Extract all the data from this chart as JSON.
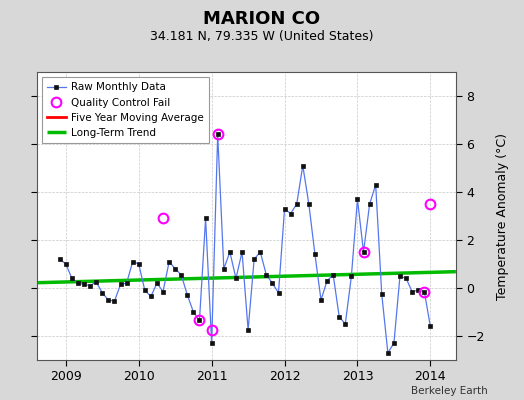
{
  "title": "MARION CO",
  "subtitle": "34.181 N, 79.335 W (United States)",
  "ylabel": "Temperature Anomaly (°C)",
  "credit": "Berkeley Earth",
  "background_color": "#d8d8d8",
  "plot_bg_color": "#ffffff",
  "ylim": [
    -3.0,
    9.0
  ],
  "yticks": [
    -2,
    0,
    2,
    4,
    6,
    8
  ],
  "xlim": [
    2008.6,
    2014.35
  ],
  "xticks": [
    2009,
    2010,
    2011,
    2012,
    2013,
    2014
  ],
  "raw_x": [
    2008.917,
    2009.0,
    2009.083,
    2009.167,
    2009.25,
    2009.333,
    2009.417,
    2009.5,
    2009.583,
    2009.667,
    2009.75,
    2009.833,
    2009.917,
    2010.0,
    2010.083,
    2010.167,
    2010.25,
    2010.333,
    2010.417,
    2010.5,
    2010.583,
    2010.667,
    2010.75,
    2010.833,
    2010.917,
    2011.0,
    2011.083,
    2011.167,
    2011.25,
    2011.333,
    2011.417,
    2011.5,
    2011.583,
    2011.667,
    2011.75,
    2011.833,
    2011.917,
    2012.0,
    2012.083,
    2012.167,
    2012.25,
    2012.333,
    2012.417,
    2012.5,
    2012.583,
    2012.667,
    2012.75,
    2012.833,
    2012.917,
    2013.0,
    2013.083,
    2013.167,
    2013.25,
    2013.333,
    2013.417,
    2013.5,
    2013.583,
    2013.667,
    2013.75,
    2013.833,
    2013.917,
    2014.0
  ],
  "raw_y": [
    1.2,
    1.0,
    0.4,
    0.2,
    0.15,
    0.1,
    0.25,
    -0.2,
    -0.5,
    -0.55,
    0.15,
    0.2,
    1.1,
    1.0,
    -0.1,
    -0.35,
    0.2,
    -0.15,
    1.1,
    0.8,
    0.55,
    -0.3,
    -1.0,
    -1.35,
    2.9,
    -2.3,
    6.4,
    0.8,
    1.5,
    0.4,
    1.5,
    -1.75,
    1.2,
    1.5,
    0.55,
    0.2,
    -0.2,
    3.3,
    3.1,
    3.5,
    5.1,
    3.5,
    1.4,
    -0.5,
    0.3,
    0.55,
    -1.2,
    -1.5,
    0.5,
    3.7,
    1.5,
    3.5,
    4.3,
    -0.25,
    -2.7,
    -2.3,
    0.5,
    0.4,
    -0.15,
    -0.1,
    -0.15,
    -1.6
  ],
  "qc_fail_x": [
    2010.333,
    2010.833,
    2011.0,
    2011.083,
    2013.083,
    2013.917,
    2014.0
  ],
  "qc_fail_y": [
    2.9,
    -1.35,
    -1.75,
    6.4,
    1.5,
    -0.15,
    3.5
  ],
  "trend_x": [
    2008.6,
    2014.35
  ],
  "trend_y": [
    0.22,
    0.68
  ],
  "raw_line_color": "#5577ee",
  "raw_marker_color": "#111111",
  "qc_color": "#ff00ff",
  "trend_color": "#00bb00",
  "ma_color": "#ff0000",
  "legend_loc": "upper left"
}
